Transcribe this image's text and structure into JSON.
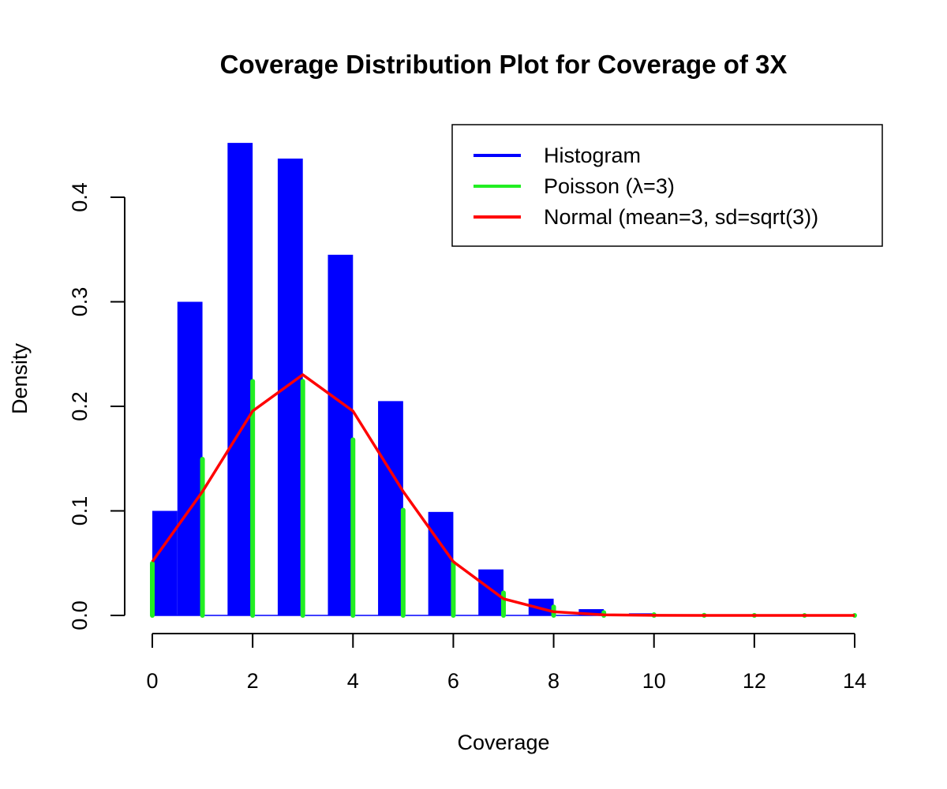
{
  "chart_data": {
    "type": "bar",
    "title": "Coverage Distribution Plot for Coverage of 3X",
    "xlabel": "Coverage",
    "ylabel": "Density",
    "xlim": [
      0,
      14
    ],
    "ylim": [
      0,
      0.45
    ],
    "x_ticks": [
      "0",
      "2",
      "4",
      "6",
      "8",
      "10",
      "12",
      "14"
    ],
    "y_ticks": [
      "0.0",
      "0.1",
      "0.2",
      "0.3",
      "0.4"
    ],
    "legend_position": "top-right",
    "grid": false,
    "histogram": {
      "name": "Histogram",
      "color": "#0000ff",
      "bins": [
        {
          "x0": 0.0,
          "x1": 0.5,
          "y": 0.1
        },
        {
          "x0": 0.5,
          "x1": 1.0,
          "y": 0.3
        },
        {
          "x0": 1.5,
          "x1": 2.0,
          "y": 0.452
        },
        {
          "x0": 2.5,
          "x1": 3.0,
          "y": 0.437
        },
        {
          "x0": 3.5,
          "x1": 4.0,
          "y": 0.345
        },
        {
          "x0": 4.5,
          "x1": 5.0,
          "y": 0.205
        },
        {
          "x0": 5.5,
          "x1": 6.0,
          "y": 0.099
        },
        {
          "x0": 6.5,
          "x1": 7.0,
          "y": 0.044
        },
        {
          "x0": 7.5,
          "x1": 8.0,
          "y": 0.016
        },
        {
          "x0": 8.5,
          "x1": 9.0,
          "y": 0.006
        },
        {
          "x0": 9.5,
          "x1": 10.0,
          "y": 0.002
        },
        {
          "x0": 10.5,
          "x1": 11.0,
          "y": 0.0005
        },
        {
          "x0": 11.5,
          "x1": 12.0,
          "y": 0.0
        },
        {
          "x0": 12.5,
          "x1": 13.0,
          "y": 0.0
        },
        {
          "x0": 13.5,
          "x1": 14.0,
          "y": 0.0
        }
      ]
    },
    "poisson": {
      "name": "Poisson (λ=3)",
      "color": "#22ee22",
      "x": [
        0,
        1,
        2,
        3,
        4,
        5,
        6,
        7,
        8,
        9,
        10,
        11,
        12,
        13,
        14
      ],
      "y": [
        0.0498,
        0.1494,
        0.224,
        0.224,
        0.168,
        0.1008,
        0.0504,
        0.0216,
        0.0081,
        0.0027,
        0.0008,
        0.0002,
        0.0001,
        0.0,
        0.0
      ]
    },
    "normal": {
      "name": "Normal (mean=3, sd=sqrt(3))",
      "color": "#ff0000",
      "x": [
        0,
        1,
        2,
        3,
        4,
        5,
        6,
        7,
        8,
        9,
        10,
        11,
        12,
        13,
        14
      ],
      "y": [
        0.0514,
        0.1186,
        0.1955,
        0.2303,
        0.1955,
        0.1186,
        0.0514,
        0.0159,
        0.0035,
        0.0006,
        0.0001,
        0.0,
        0.0,
        0.0,
        0.0
      ]
    }
  }
}
